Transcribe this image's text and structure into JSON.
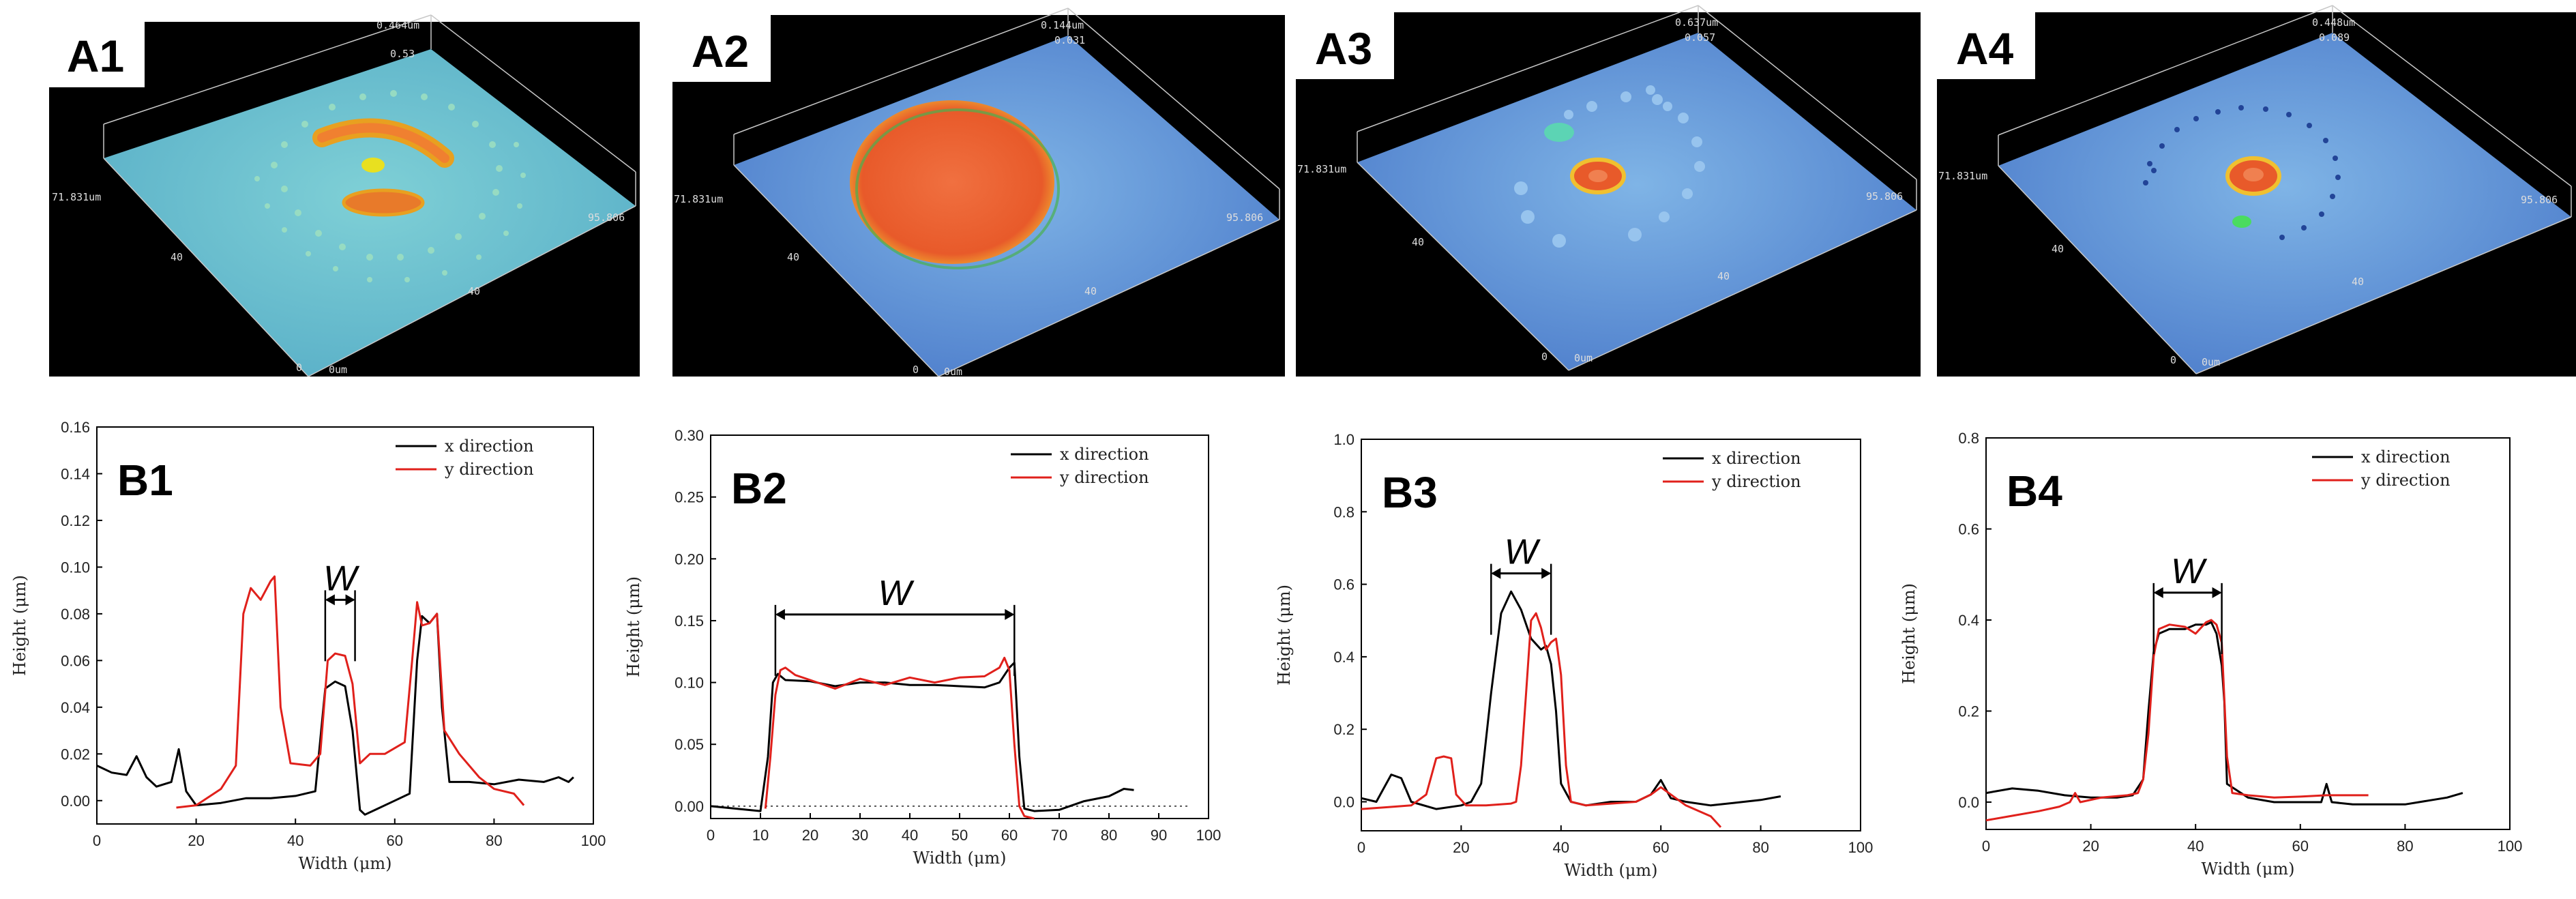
{
  "panels_3d": [
    {
      "label": "A1",
      "z_top": "0.464um",
      "z_mid": "0.53",
      "x_extent": "95.806",
      "y_extent": "71.831um",
      "ticks_x": [
        "0",
        "40"
      ],
      "ticks_y": [
        "0",
        "40"
      ],
      "origin": "0um"
    },
    {
      "label": "A2",
      "z_top": "0.144um",
      "z_mid": "0.031",
      "x_extent": "95.806",
      "y_extent": "71.831um",
      "ticks_x": [
        "0",
        "40"
      ],
      "ticks_y": [
        "0",
        "40"
      ],
      "origin": "0um"
    },
    {
      "label": "A3",
      "z_top": "0.637um",
      "z_mid": "0.057",
      "x_extent": "95.806",
      "y_extent": "71.831um",
      "ticks_x": [
        "0",
        "40"
      ],
      "ticks_y": [
        "0",
        "40"
      ],
      "origin": "0um"
    },
    {
      "label": "A4",
      "z_top": "0.448um",
      "z_mid": "0.089",
      "x_extent": "95.806",
      "y_extent": "71.831um",
      "ticks_x": [
        "0",
        "40"
      ],
      "ticks_y": [
        "0",
        "40"
      ],
      "origin": "0um"
    }
  ],
  "colors": {
    "x_direction": "#000000",
    "y_direction": "#e0201b",
    "background_3d": "#000000"
  },
  "chart_data": [
    {
      "label": "B1",
      "type": "line",
      "xlabel": "Width (μm)",
      "ylabel": "Height (μm)",
      "xlim": [
        0,
        100
      ],
      "ylim": [
        -0.01,
        0.16
      ],
      "xticks": [
        0,
        20,
        40,
        60,
        80,
        100
      ],
      "yticks": [
        0.0,
        0.02,
        0.04,
        0.06,
        0.08,
        0.1,
        0.12,
        0.14,
        0.16
      ],
      "ytick_labels": [
        "0.00",
        "0.02",
        "0.04",
        "0.06",
        "0.08",
        "0.10",
        "0.12",
        "0.14",
        "0.16"
      ],
      "legend_placement": "top-right",
      "width_marker": {
        "text": "W",
        "x1": 46,
        "x2": 52,
        "y": 0.086
      },
      "series": [
        {
          "name": "x direction",
          "color": "#000000",
          "x": [
            0,
            3,
            6,
            8,
            10,
            12,
            15,
            16.5,
            18,
            20,
            25,
            30,
            35,
            40,
            44,
            46,
            48,
            50,
            51.5,
            53,
            54,
            56,
            60,
            63,
            64.5,
            65.5,
            67,
            68.5,
            69.5,
            71,
            75,
            80,
            85,
            90,
            93,
            95,
            96
          ],
          "y": [
            0.015,
            0.012,
            0.011,
            0.019,
            0.01,
            0.006,
            0.008,
            0.022,
            0.004,
            -0.002,
            -0.001,
            0.001,
            0.001,
            0.002,
            0.004,
            0.048,
            0.051,
            0.049,
            0.03,
            -0.004,
            -0.006,
            -0.004,
            0.0,
            0.003,
            0.06,
            0.079,
            0.076,
            0.08,
            0.04,
            0.008,
            0.008,
            0.007,
            0.009,
            0.008,
            0.01,
            0.008,
            0.01
          ]
        },
        {
          "name": "y direction",
          "color": "#e0201b",
          "x": [
            16,
            20,
            25,
            28,
            29.5,
            31,
            33,
            35,
            35.8,
            37,
            39,
            43,
            45,
            46.5,
            48,
            50,
            51.5,
            53,
            55,
            58,
            62,
            63.5,
            64.5,
            65.5,
            67,
            68.5,
            70,
            73,
            77,
            80,
            84,
            86
          ],
          "y": [
            -0.003,
            -0.002,
            0.005,
            0.015,
            0.08,
            0.091,
            0.086,
            0.094,
            0.096,
            0.04,
            0.016,
            0.015,
            0.02,
            0.06,
            0.063,
            0.062,
            0.05,
            0.016,
            0.02,
            0.02,
            0.025,
            0.06,
            0.085,
            0.075,
            0.076,
            0.08,
            0.03,
            0.02,
            0.01,
            0.005,
            0.003,
            -0.002
          ]
        }
      ]
    },
    {
      "label": "B2",
      "type": "line",
      "xlabel": "Width (μm)",
      "ylabel": "Height (μm)",
      "xlim": [
        0,
        100
      ],
      "ylim": [
        -0.01,
        0.3
      ],
      "xticks": [
        0,
        10,
        20,
        30,
        40,
        50,
        60,
        70,
        80,
        90,
        100
      ],
      "yticks": [
        0.0,
        0.05,
        0.1,
        0.15,
        0.2,
        0.25,
        0.3
      ],
      "ytick_labels": [
        "0.00",
        "0.05",
        "0.10",
        "0.15",
        "0.20",
        "0.25",
        "0.30"
      ],
      "legend_placement": "top-right",
      "baseline": {
        "y": 0.0,
        "x1": 0,
        "x2": 96
      },
      "width_marker": {
        "text": "W",
        "x1": 13,
        "x2": 61,
        "y": 0.155
      },
      "series": [
        {
          "name": "x direction",
          "color": "#000000",
          "x": [
            0,
            5,
            10,
            11.5,
            12.5,
            13.5,
            15,
            20,
            25,
            30,
            35,
            40,
            45,
            50,
            55,
            58,
            60,
            61,
            62,
            63,
            65,
            70,
            75,
            80,
            83,
            85
          ],
          "y": [
            0.0,
            -0.002,
            -0.004,
            0.04,
            0.1,
            0.107,
            0.102,
            0.101,
            0.097,
            0.1,
            0.1,
            0.098,
            0.098,
            0.097,
            0.096,
            0.1,
            0.112,
            0.116,
            0.04,
            -0.002,
            -0.004,
            -0.003,
            0.004,
            0.008,
            0.014,
            0.013
          ]
        },
        {
          "name": "y direction",
          "color": "#e0201b",
          "x": [
            11,
            12,
            13,
            14,
            15,
            17,
            20,
            25,
            30,
            35,
            40,
            45,
            50,
            55,
            58,
            59,
            60,
            61,
            62,
            63,
            65
          ],
          "y": [
            -0.002,
            0.04,
            0.09,
            0.11,
            0.112,
            0.106,
            0.102,
            0.095,
            0.103,
            0.098,
            0.104,
            0.1,
            0.104,
            0.105,
            0.112,
            0.12,
            0.11,
            0.05,
            0.0,
            -0.008,
            -0.01
          ]
        }
      ]
    },
    {
      "label": "B3",
      "type": "line",
      "xlabel": "Width (μm)",
      "ylabel": "Height (μm)",
      "xlim": [
        0,
        100
      ],
      "ylim": [
        -0.08,
        1.0
      ],
      "xticks": [
        0,
        20,
        40,
        60,
        80,
        100
      ],
      "yticks": [
        0.0,
        0.2,
        0.4,
        0.6,
        0.8,
        1.0
      ],
      "ytick_labels": [
        "0.0",
        "0.2",
        "0.4",
        "0.6",
        "0.8",
        "1.0"
      ],
      "legend_placement": "top-right",
      "width_marker": {
        "text": "W",
        "x1": 26,
        "x2": 38,
        "y": 0.63
      },
      "series": [
        {
          "name": "x direction",
          "color": "#000000",
          "x": [
            0,
            3,
            6,
            8,
            10,
            15,
            20,
            22,
            24,
            26,
            28,
            30,
            32,
            34,
            36,
            37,
            38,
            39,
            40,
            42,
            45,
            50,
            55,
            58,
            60,
            62,
            65,
            70,
            80,
            84
          ],
          "y": [
            0.01,
            0.0,
            0.075,
            0.065,
            0.0,
            -0.02,
            -0.01,
            0.0,
            0.05,
            0.3,
            0.52,
            0.58,
            0.53,
            0.45,
            0.42,
            0.43,
            0.38,
            0.25,
            0.05,
            0.0,
            -0.01,
            0.0,
            0.0,
            0.02,
            0.06,
            0.01,
            0.0,
            -0.01,
            0.005,
            0.015
          ]
        },
        {
          "name": "y direction",
          "color": "#e0201b",
          "x": [
            0,
            5,
            10,
            13,
            15,
            16.5,
            18,
            19,
            21,
            25,
            30,
            31,
            32,
            33,
            34,
            35,
            36,
            37,
            38,
            39,
            40,
            41,
            42,
            45,
            50,
            55,
            58,
            60,
            65,
            70,
            72
          ],
          "y": [
            -0.02,
            -0.015,
            -0.01,
            0.02,
            0.12,
            0.125,
            0.12,
            0.02,
            -0.01,
            -0.01,
            -0.005,
            0.0,
            0.1,
            0.3,
            0.5,
            0.52,
            0.48,
            0.42,
            0.44,
            0.45,
            0.35,
            0.1,
            0.0,
            -0.01,
            -0.005,
            0.0,
            0.02,
            0.04,
            -0.01,
            -0.04,
            -0.07
          ]
        }
      ]
    },
    {
      "label": "B4",
      "type": "line",
      "xlabel": "Width (μm)",
      "ylabel": "Height (μm)",
      "xlim": [
        0,
        100
      ],
      "ylim": [
        -0.06,
        0.8
      ],
      "xticks": [
        0,
        20,
        40,
        60,
        80,
        100
      ],
      "yticks": [
        0.0,
        0.2,
        0.4,
        0.6,
        0.8
      ],
      "ytick_labels": [
        "0.0",
        "0.2",
        "0.4",
        "0.6",
        "0.8"
      ],
      "legend_placement": "top-right",
      "width_marker": {
        "text": "W",
        "x1": 32,
        "x2": 45,
        "y": 0.46
      },
      "series": [
        {
          "name": "x direction",
          "color": "#000000",
          "x": [
            0,
            5,
            10,
            15,
            20,
            25,
            28,
            30,
            31,
            32,
            33,
            35,
            38,
            40,
            42,
            43,
            44,
            45,
            45.5,
            46,
            50,
            55,
            60,
            64,
            65,
            66,
            70,
            80,
            88,
            91
          ],
          "y": [
            0.02,
            0.03,
            0.025,
            0.015,
            0.01,
            0.01,
            0.015,
            0.05,
            0.2,
            0.33,
            0.37,
            0.38,
            0.38,
            0.39,
            0.39,
            0.395,
            0.37,
            0.3,
            0.22,
            0.04,
            0.01,
            0.0,
            0.0,
            0.0,
            0.04,
            0.0,
            -0.005,
            -0.005,
            0.01,
            0.02
          ]
        },
        {
          "name": "y direction",
          "color": "#e0201b",
          "x": [
            0,
            5,
            10,
            14,
            16,
            17,
            18,
            22,
            27,
            29,
            30,
            31,
            32,
            33,
            35,
            38,
            40,
            42,
            43,
            44,
            45,
            46,
            47,
            50,
            55,
            60,
            65,
            70,
            73
          ],
          "y": [
            -0.04,
            -0.03,
            -0.02,
            -0.01,
            0.0,
            0.02,
            0.0,
            0.01,
            0.015,
            0.02,
            0.05,
            0.15,
            0.32,
            0.38,
            0.39,
            0.385,
            0.37,
            0.395,
            0.4,
            0.39,
            0.35,
            0.1,
            0.02,
            0.015,
            0.01,
            0.012,
            0.015,
            0.015,
            0.015
          ]
        }
      ]
    }
  ]
}
